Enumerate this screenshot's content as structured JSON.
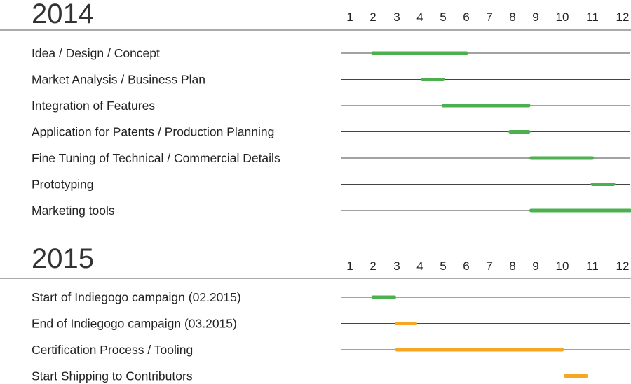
{
  "chart_data": {
    "type": "gantt",
    "colors": {
      "green": "#4cb050",
      "orange": "#f5a623"
    },
    "months": [
      "1",
      "2",
      "3",
      "4",
      "5",
      "6",
      "7",
      "8",
      "9",
      "10",
      "11",
      "12"
    ],
    "sections": [
      {
        "year": "2014",
        "tasks": [
          {
            "label": "Idea / Design / Concept",
            "start": 2.0,
            "end": 6.0,
            "color": "green"
          },
          {
            "label": "Market Analysis / Business Plan",
            "start": 4.1,
            "end": 5.0,
            "color": "green"
          },
          {
            "label": "Integration of Features",
            "start": 5.0,
            "end": 8.7,
            "color": "green"
          },
          {
            "label": "Application for Patents / Production Planning",
            "start": 7.9,
            "end": 8.7,
            "color": "green"
          },
          {
            "label": "Fine Tuning of Technical / Commercial Details",
            "start": 8.8,
            "end": 11.0,
            "color": "green"
          },
          {
            "label": "Prototyping",
            "start": 11.0,
            "end": 11.7,
            "color": "green"
          },
          {
            "label": "Marketing tools",
            "start": 8.8,
            "end": 12.3,
            "color": "green"
          }
        ]
      },
      {
        "year": "2015",
        "tasks": [
          {
            "label": "Start of Indiegogo campaign (02.2015)",
            "start": 2.0,
            "end": 2.9,
            "color": "green"
          },
          {
            "label": "End of Indiegogo campaign (03.2015)",
            "start": 3.0,
            "end": 3.8,
            "color": "orange"
          },
          {
            "label": "Certification Process / Tooling",
            "start": 3.0,
            "end": 10.0,
            "color": "orange"
          },
          {
            "label": "Start Shipping to Contributors",
            "start": 10.1,
            "end": 10.8,
            "color": "orange"
          }
        ]
      }
    ]
  }
}
